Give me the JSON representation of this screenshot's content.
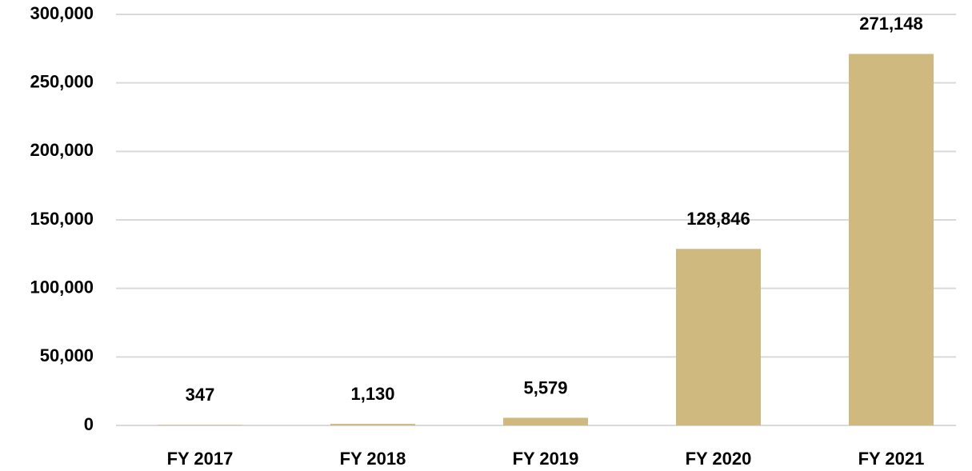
{
  "chart_data": {
    "type": "bar",
    "categories": [
      "FY 2017",
      "FY 2018",
      "FY 2019",
      "FY 2020",
      "FY 2021"
    ],
    "values": [
      347,
      1130,
      5579,
      128846,
      271148
    ],
    "value_labels": [
      "347",
      "1,130",
      "5,579",
      "128,846",
      "271,148"
    ],
    "color": "#cfb97e",
    "ylim": [
      0,
      300000
    ],
    "yticks": [
      0,
      {
        "value": 50000,
        "label": "50,000"
      },
      {
        "value": 100000,
        "label": "100,000"
      },
      {
        "value": 150000,
        "label": "150,000"
      },
      {
        "value": 200000,
        "label": "200,000"
      },
      {
        "value": 250000,
        "label": "250,000"
      },
      {
        "value": 300000,
        "label": "300,000"
      }
    ],
    "grid": true
  }
}
